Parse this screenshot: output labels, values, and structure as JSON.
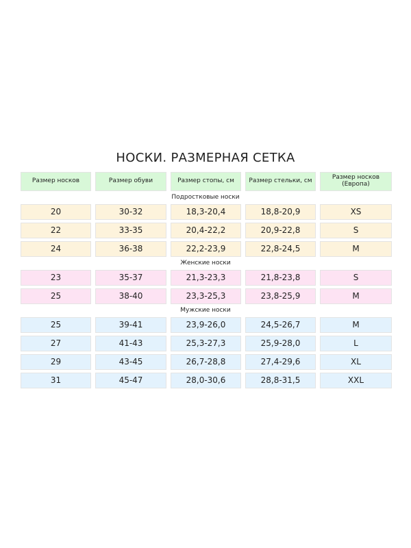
{
  "title": "НОСКИ. РАЗМЕРНАЯ СЕТКА",
  "header": [
    "Размер носков",
    "Размер обуви",
    "Размер стопы, см",
    "Размер стельки, см",
    "Размер носков (Европа)"
  ],
  "sections": [
    {
      "label": "Подростковые носки",
      "rows": [
        [
          "20",
          "30-32",
          "18,3-20,4",
          "18,8-20,9",
          "XS"
        ],
        [
          "22",
          "33-35",
          "20,4-22,2",
          "20,9-22,8",
          "S"
        ],
        [
          "24",
          "36-38",
          "22,2-23,9",
          "22,8-24,5",
          "M"
        ]
      ]
    },
    {
      "label": "Женские носки",
      "rows": [
        [
          "23",
          "35-37",
          "21,3-23,3",
          "21,8-23,8",
          "S"
        ],
        [
          "25",
          "38-40",
          "23,3-25,3",
          "23,8-25,9",
          "M"
        ]
      ]
    },
    {
      "label": "Мужские носки",
      "rows": [
        [
          "25",
          "39-41",
          "23,9-26,0",
          "24,5-26,7",
          "M"
        ],
        [
          "27",
          "41-43",
          "25,3-27,3",
          "25,9-28,0",
          "L"
        ],
        [
          "29",
          "43-45",
          "26,7-28,8",
          "27,4-29,6",
          "XL"
        ],
        [
          "31",
          "45-47",
          "28,0-30,6",
          "28,8-31,5",
          "XXL"
        ]
      ]
    }
  ]
}
